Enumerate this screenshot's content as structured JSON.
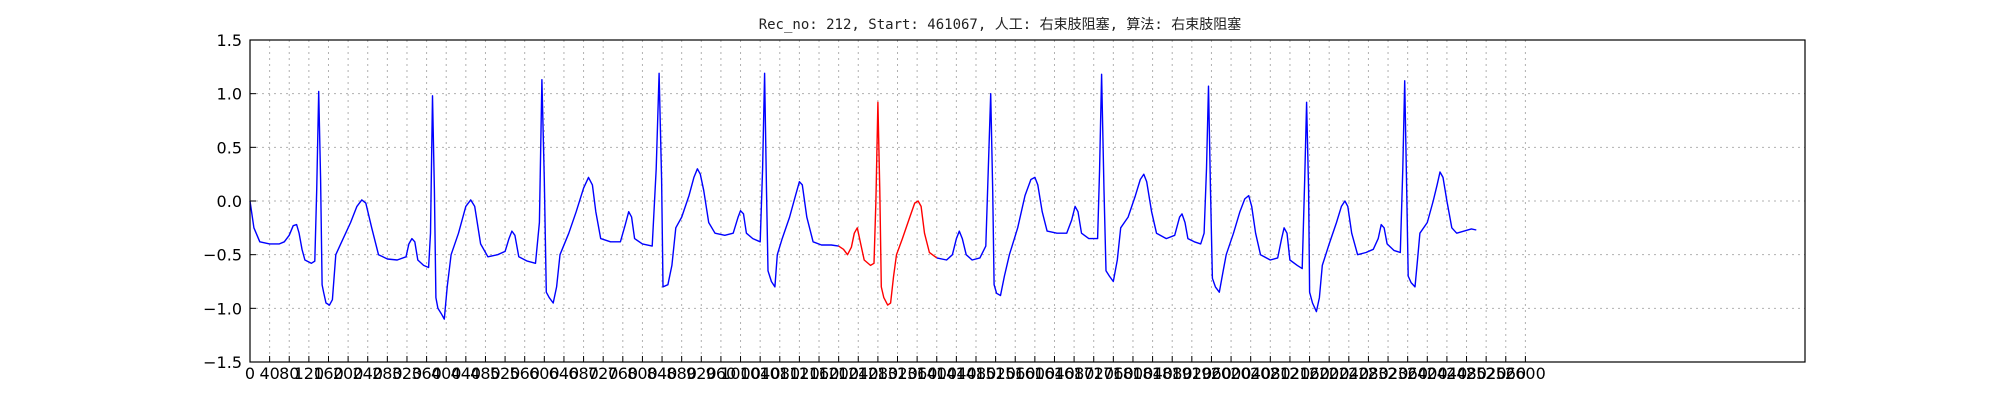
{
  "chart_data": {
    "type": "line",
    "title": "Rec_no: 212, Start: 461067, 人工: 右束肢阻塞, 算法: 右束肢阻塞",
    "xlabel": "",
    "ylabel": "",
    "xlim": [
      0,
      3170
    ],
    "ylim": [
      -1.5,
      1.5
    ],
    "grid": true,
    "yticks": [
      -1.5,
      -1.0,
      -0.5,
      0.0,
      0.5,
      1.0,
      1.5
    ],
    "yticklabels": [
      "−1.5",
      "−1.0",
      "−0.5",
      "0.0",
      "0.5",
      "1.0",
      "1.5"
    ],
    "xticks": [
      0,
      40,
      80,
      120,
      160,
      200,
      240,
      280,
      320,
      360,
      400,
      440,
      480,
      520,
      560,
      600,
      640,
      680,
      720,
      760,
      800,
      840,
      880,
      920,
      960,
      1000,
      1040,
      1080,
      1120,
      1160,
      1200,
      1240,
      1280,
      1320,
      1360,
      1400,
      1440,
      1480,
      1520,
      1560,
      1600,
      1640,
      1680,
      1720,
      1760,
      1800,
      1840,
      1880,
      1920,
      1960,
      2000,
      2040,
      2080,
      2120,
      2160,
      2200,
      2240,
      2280,
      2320,
      2360,
      2400,
      2440,
      2480,
      2520,
      2560,
      2600
    ],
    "xticklabels": [
      "0",
      "40",
      "80",
      "120",
      "160",
      "200",
      "240",
      "280",
      "320",
      "360",
      "400",
      "440",
      "480",
      "520",
      "560",
      "600",
      "640",
      "680",
      "720",
      "760",
      "800",
      "840",
      "880",
      "920",
      "960",
      "1000",
      "1040",
      "1080",
      "1120",
      "1160",
      "1200",
      "1240",
      "1280",
      "1320",
      "1360",
      "1400",
      "1440",
      "1480",
      "1520",
      "1560",
      "1600",
      "1640",
      "1680",
      "1720",
      "1760",
      "1800",
      "1840",
      "1880",
      "1920",
      "1960",
      "2000",
      "2040",
      "2080",
      "2120",
      "2160",
      "2200",
      "2240",
      "2280",
      "2320",
      "2360",
      "2400",
      "2440",
      "2480",
      "2520",
      "2560",
      "2600"
    ],
    "colors": {
      "normal": "#0000ff",
      "highlight": "#ff0000"
    },
    "series": [
      {
        "color": "normal",
        "points": [
          [
            0,
            0.0
          ],
          [
            8,
            -0.25
          ],
          [
            20,
            -0.38
          ],
          [
            40,
            -0.4
          ],
          [
            60,
            -0.4
          ],
          [
            70,
            -0.38
          ],
          [
            80,
            -0.32
          ],
          [
            88,
            -0.23
          ],
          [
            95,
            -0.22
          ],
          [
            100,
            -0.3
          ],
          [
            106,
            -0.45
          ],
          [
            112,
            -0.55
          ],
          [
            125,
            -0.58
          ],
          [
            132,
            -0.56
          ],
          [
            136,
            0.1
          ],
          [
            140,
            1.02
          ],
          [
            144,
            0.2
          ],
          [
            147,
            -0.78
          ],
          [
            150,
            -0.85
          ],
          [
            155,
            -0.95
          ],
          [
            162,
            -0.97
          ],
          [
            168,
            -0.92
          ],
          [
            175,
            -0.5
          ],
          [
            185,
            -0.4
          ],
          [
            205,
            -0.2
          ],
          [
            218,
            -0.05
          ],
          [
            228,
            0.01
          ],
          [
            236,
            -0.02
          ],
          [
            248,
            -0.25
          ],
          [
            262,
            -0.5
          ],
          [
            280,
            -0.54
          ],
          [
            300,
            -0.55
          ],
          [
            318,
            -0.52
          ],
          [
            324,
            -0.4
          ],
          [
            330,
            -0.35
          ],
          [
            336,
            -0.38
          ],
          [
            342,
            -0.55
          ],
          [
            354,
            -0.6
          ],
          [
            364,
            -0.62
          ],
          [
            368,
            -0.3
          ],
          [
            372,
            0.98
          ],
          [
            376,
            0.1
          ],
          [
            379,
            -0.9
          ],
          [
            383,
            -1.0
          ],
          [
            390,
            -1.05
          ],
          [
            396,
            -1.1
          ],
          [
            402,
            -0.8
          ],
          [
            410,
            -0.5
          ],
          [
            425,
            -0.3
          ],
          [
            440,
            -0.05
          ],
          [
            450,
            0.01
          ],
          [
            458,
            -0.05
          ],
          [
            470,
            -0.4
          ],
          [
            485,
            -0.52
          ],
          [
            505,
            -0.5
          ],
          [
            520,
            -0.47
          ],
          [
            528,
            -0.35
          ],
          [
            534,
            -0.28
          ],
          [
            540,
            -0.32
          ],
          [
            548,
            -0.52
          ],
          [
            565,
            -0.56
          ],
          [
            582,
            -0.58
          ],
          [
            590,
            -0.2
          ],
          [
            595,
            1.13
          ],
          [
            600,
            0.2
          ],
          [
            604,
            -0.85
          ],
          [
            610,
            -0.9
          ],
          [
            618,
            -0.95
          ],
          [
            625,
            -0.8
          ],
          [
            632,
            -0.5
          ],
          [
            650,
            -0.3
          ],
          [
            665,
            -0.1
          ],
          [
            680,
            0.12
          ],
          [
            690,
            0.22
          ],
          [
            698,
            0.15
          ],
          [
            705,
            -0.1
          ],
          [
            715,
            -0.35
          ],
          [
            735,
            -0.38
          ],
          [
            755,
            -0.38
          ],
          [
            765,
            -0.22
          ],
          [
            772,
            -0.1
          ],
          [
            778,
            -0.15
          ],
          [
            784,
            -0.35
          ],
          [
            800,
            -0.4
          ],
          [
            820,
            -0.42
          ],
          [
            828,
            0.3
          ],
          [
            834,
            1.19
          ],
          [
            839,
            0.2
          ],
          [
            842,
            -0.8
          ],
          [
            852,
            -0.78
          ],
          [
            860,
            -0.6
          ],
          [
            868,
            -0.25
          ],
          [
            880,
            -0.15
          ],
          [
            895,
            0.05
          ],
          [
            905,
            0.22
          ],
          [
            912,
            0.3
          ],
          [
            918,
            0.25
          ],
          [
            925,
            0.1
          ],
          [
            935,
            -0.2
          ],
          [
            948,
            -0.3
          ],
          [
            968,
            -0.32
          ],
          [
            985,
            -0.3
          ],
          [
            995,
            -0.15
          ],
          [
            1000,
            -0.09
          ],
          [
            1006,
            -0.12
          ],
          [
            1012,
            -0.3
          ],
          [
            1025,
            -0.35
          ],
          [
            1040,
            -0.38
          ],
          [
            1045,
            0.3
          ],
          [
            1049,
            1.19
          ],
          [
            1053,
            0.1
          ],
          [
            1056,
            -0.65
          ],
          [
            1063,
            -0.75
          ],
          [
            1070,
            -0.8
          ],
          [
            1075,
            -0.5
          ],
          [
            1085,
            -0.35
          ],
          [
            1100,
            -0.15
          ],
          [
            1112,
            0.05
          ],
          [
            1120,
            0.18
          ],
          [
            1126,
            0.15
          ],
          [
            1135,
            -0.15
          ],
          [
            1148,
            -0.38
          ],
          [
            1165,
            -0.41
          ],
          [
            1185,
            -0.41
          ],
          [
            1200,
            -0.42
          ]
        ]
      },
      {
        "color": "highlight",
        "points": [
          [
            1200,
            -0.42
          ],
          [
            1210,
            -0.45
          ],
          [
            1218,
            -0.5
          ],
          [
            1226,
            -0.43
          ],
          [
            1232,
            -0.3
          ],
          [
            1238,
            -0.25
          ],
          [
            1245,
            -0.4
          ],
          [
            1252,
            -0.55
          ],
          [
            1265,
            -0.6
          ],
          [
            1272,
            -0.58
          ],
          [
            1276,
            0.0
          ],
          [
            1280,
            0.92
          ],
          [
            1284,
            0.1
          ],
          [
            1287,
            -0.8
          ],
          [
            1292,
            -0.9
          ],
          [
            1300,
            -0.97
          ],
          [
            1306,
            -0.95
          ],
          [
            1312,
            -0.7
          ],
          [
            1318,
            -0.5
          ],
          [
            1330,
            -0.35
          ],
          [
            1345,
            -0.15
          ],
          [
            1355,
            -0.02
          ],
          [
            1362,
            0.0
          ],
          [
            1368,
            -0.05
          ],
          [
            1375,
            -0.3
          ],
          [
            1385,
            -0.48
          ],
          [
            1400,
            -0.53
          ]
        ]
      },
      {
        "color": "normal",
        "points": [
          [
            1400,
            -0.53
          ],
          [
            1420,
            -0.55
          ],
          [
            1432,
            -0.5
          ],
          [
            1440,
            -0.35
          ],
          [
            1446,
            -0.28
          ],
          [
            1452,
            -0.35
          ],
          [
            1460,
            -0.5
          ],
          [
            1472,
            -0.55
          ],
          [
            1488,
            -0.53
          ],
          [
            1500,
            -0.42
          ],
          [
            1505,
            0.3
          ],
          [
            1510,
            1.0
          ],
          [
            1514,
            0.1
          ],
          [
            1517,
            -0.78
          ],
          [
            1522,
            -0.86
          ],
          [
            1530,
            -0.88
          ],
          [
            1538,
            -0.7
          ],
          [
            1548,
            -0.5
          ],
          [
            1565,
            -0.25
          ],
          [
            1580,
            0.05
          ],
          [
            1592,
            0.2
          ],
          [
            1600,
            0.22
          ],
          [
            1606,
            0.15
          ],
          [
            1615,
            -0.1
          ],
          [
            1625,
            -0.28
          ],
          [
            1645,
            -0.3
          ],
          [
            1665,
            -0.3
          ],
          [
            1675,
            -0.18
          ],
          [
            1682,
            -0.05
          ],
          [
            1688,
            -0.1
          ],
          [
            1695,
            -0.3
          ],
          [
            1710,
            -0.35
          ],
          [
            1728,
            -0.35
          ],
          [
            1732,
            0.3
          ],
          [
            1736,
            1.18
          ],
          [
            1741,
            0.1
          ],
          [
            1745,
            -0.65
          ],
          [
            1752,
            -0.7
          ],
          [
            1760,
            -0.75
          ],
          [
            1768,
            -0.55
          ],
          [
            1775,
            -0.25
          ],
          [
            1790,
            -0.15
          ],
          [
            1805,
            0.05
          ],
          [
            1815,
            0.2
          ],
          [
            1822,
            0.25
          ],
          [
            1828,
            0.18
          ],
          [
            1838,
            -0.1
          ],
          [
            1848,
            -0.3
          ],
          [
            1868,
            -0.35
          ],
          [
            1885,
            -0.32
          ],
          [
            1895,
            -0.15
          ],
          [
            1900,
            -0.12
          ],
          [
            1906,
            -0.2
          ],
          [
            1912,
            -0.35
          ],
          [
            1925,
            -0.38
          ],
          [
            1938,
            -0.4
          ],
          [
            1945,
            -0.3
          ],
          [
            1950,
            0.3
          ],
          [
            1954,
            1.07
          ],
          [
            1958,
            0.1
          ],
          [
            1962,
            -0.72
          ],
          [
            1968,
            -0.8
          ],
          [
            1976,
            -0.85
          ],
          [
            1984,
            -0.65
          ],
          [
            1990,
            -0.5
          ],
          [
            2005,
            -0.3
          ],
          [
            2018,
            -0.1
          ],
          [
            2028,
            0.02
          ],
          [
            2036,
            0.05
          ],
          [
            2042,
            -0.05
          ],
          [
            2050,
            -0.3
          ],
          [
            2060,
            -0.5
          ],
          [
            2080,
            -0.55
          ],
          [
            2095,
            -0.53
          ],
          [
            2103,
            -0.35
          ],
          [
            2108,
            -0.25
          ],
          [
            2114,
            -0.3
          ],
          [
            2120,
            -0.55
          ],
          [
            2135,
            -0.6
          ],
          [
            2145,
            -0.63
          ],
          [
            2150,
            0.2
          ],
          [
            2154,
            0.92
          ],
          [
            2158,
            0.1
          ],
          [
            2160,
            -0.85
          ],
          [
            2166,
            -0.95
          ],
          [
            2174,
            -1.03
          ],
          [
            2180,
            -0.9
          ],
          [
            2186,
            -0.6
          ],
          [
            2200,
            -0.4
          ],
          [
            2215,
            -0.2
          ],
          [
            2225,
            -0.05
          ],
          [
            2232,
            0.0
          ],
          [
            2238,
            -0.05
          ],
          [
            2246,
            -0.3
          ],
          [
            2258,
            -0.5
          ],
          [
            2275,
            -0.48
          ],
          [
            2290,
            -0.45
          ],
          [
            2300,
            -0.35
          ],
          [
            2306,
            -0.22
          ],
          [
            2312,
            -0.25
          ],
          [
            2318,
            -0.4
          ],
          [
            2332,
            -0.46
          ],
          [
            2345,
            -0.48
          ],
          [
            2350,
            0.3
          ],
          [
            2354,
            1.12
          ],
          [
            2358,
            0.1
          ],
          [
            2361,
            -0.7
          ],
          [
            2367,
            -0.76
          ],
          [
            2375,
            -0.8
          ],
          [
            2380,
            -0.55
          ],
          [
            2385,
            -0.3
          ],
          [
            2400,
            -0.2
          ],
          [
            2412,
            0.0
          ],
          [
            2420,
            0.15
          ],
          [
            2426,
            0.27
          ],
          [
            2432,
            0.22
          ],
          [
            2440,
            0.0
          ],
          [
            2450,
            -0.25
          ],
          [
            2460,
            -0.3
          ],
          [
            2475,
            -0.28
          ],
          [
            2490,
            -0.26
          ],
          [
            2500,
            -0.27
          ]
        ]
      }
    ]
  }
}
